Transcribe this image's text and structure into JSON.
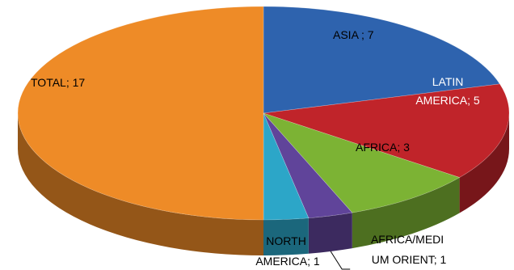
{
  "chart_data": {
    "type": "pie",
    "style": "3d",
    "slices": [
      {
        "label": "ASIA ; 7",
        "category": "ASIA",
        "value": 7,
        "color": "#2E63AE"
      },
      {
        "label": "LATIN AMERICA; 5",
        "category": "LATIN AMERICA",
        "value": 5,
        "color": "#C0242A"
      },
      {
        "label": "AFRICA; 3",
        "category": "AFRICA",
        "value": 3,
        "color": "#7CB334"
      },
      {
        "label": "AFRICA/MEDIUM ORIENT; 1",
        "category": "AFRICA/MEDIUM ORIENT",
        "value": 1,
        "color": "#60449A"
      },
      {
        "label": "NORTH AMERICA; 1",
        "category": "NORTH AMERICA",
        "value": 1,
        "color": "#2CA6C8"
      },
      {
        "label": "TOTAL; 17",
        "category": "TOTAL",
        "value": 17,
        "color": "#EE8B27"
      }
    ],
    "label_lines": {
      "asia": [
        "ASIA ; 7"
      ],
      "latin_america": [
        "LATIN",
        "AMERICA; 5"
      ],
      "africa": [
        "AFRICA; 3"
      ],
      "north_america": [
        "NORTH",
        "AMERICA; 1"
      ],
      "africa_medium_orient": [
        "AFRICA/MEDI",
        "UM ORIENT; 1"
      ],
      "total": [
        "TOTAL; 17"
      ]
    }
  }
}
